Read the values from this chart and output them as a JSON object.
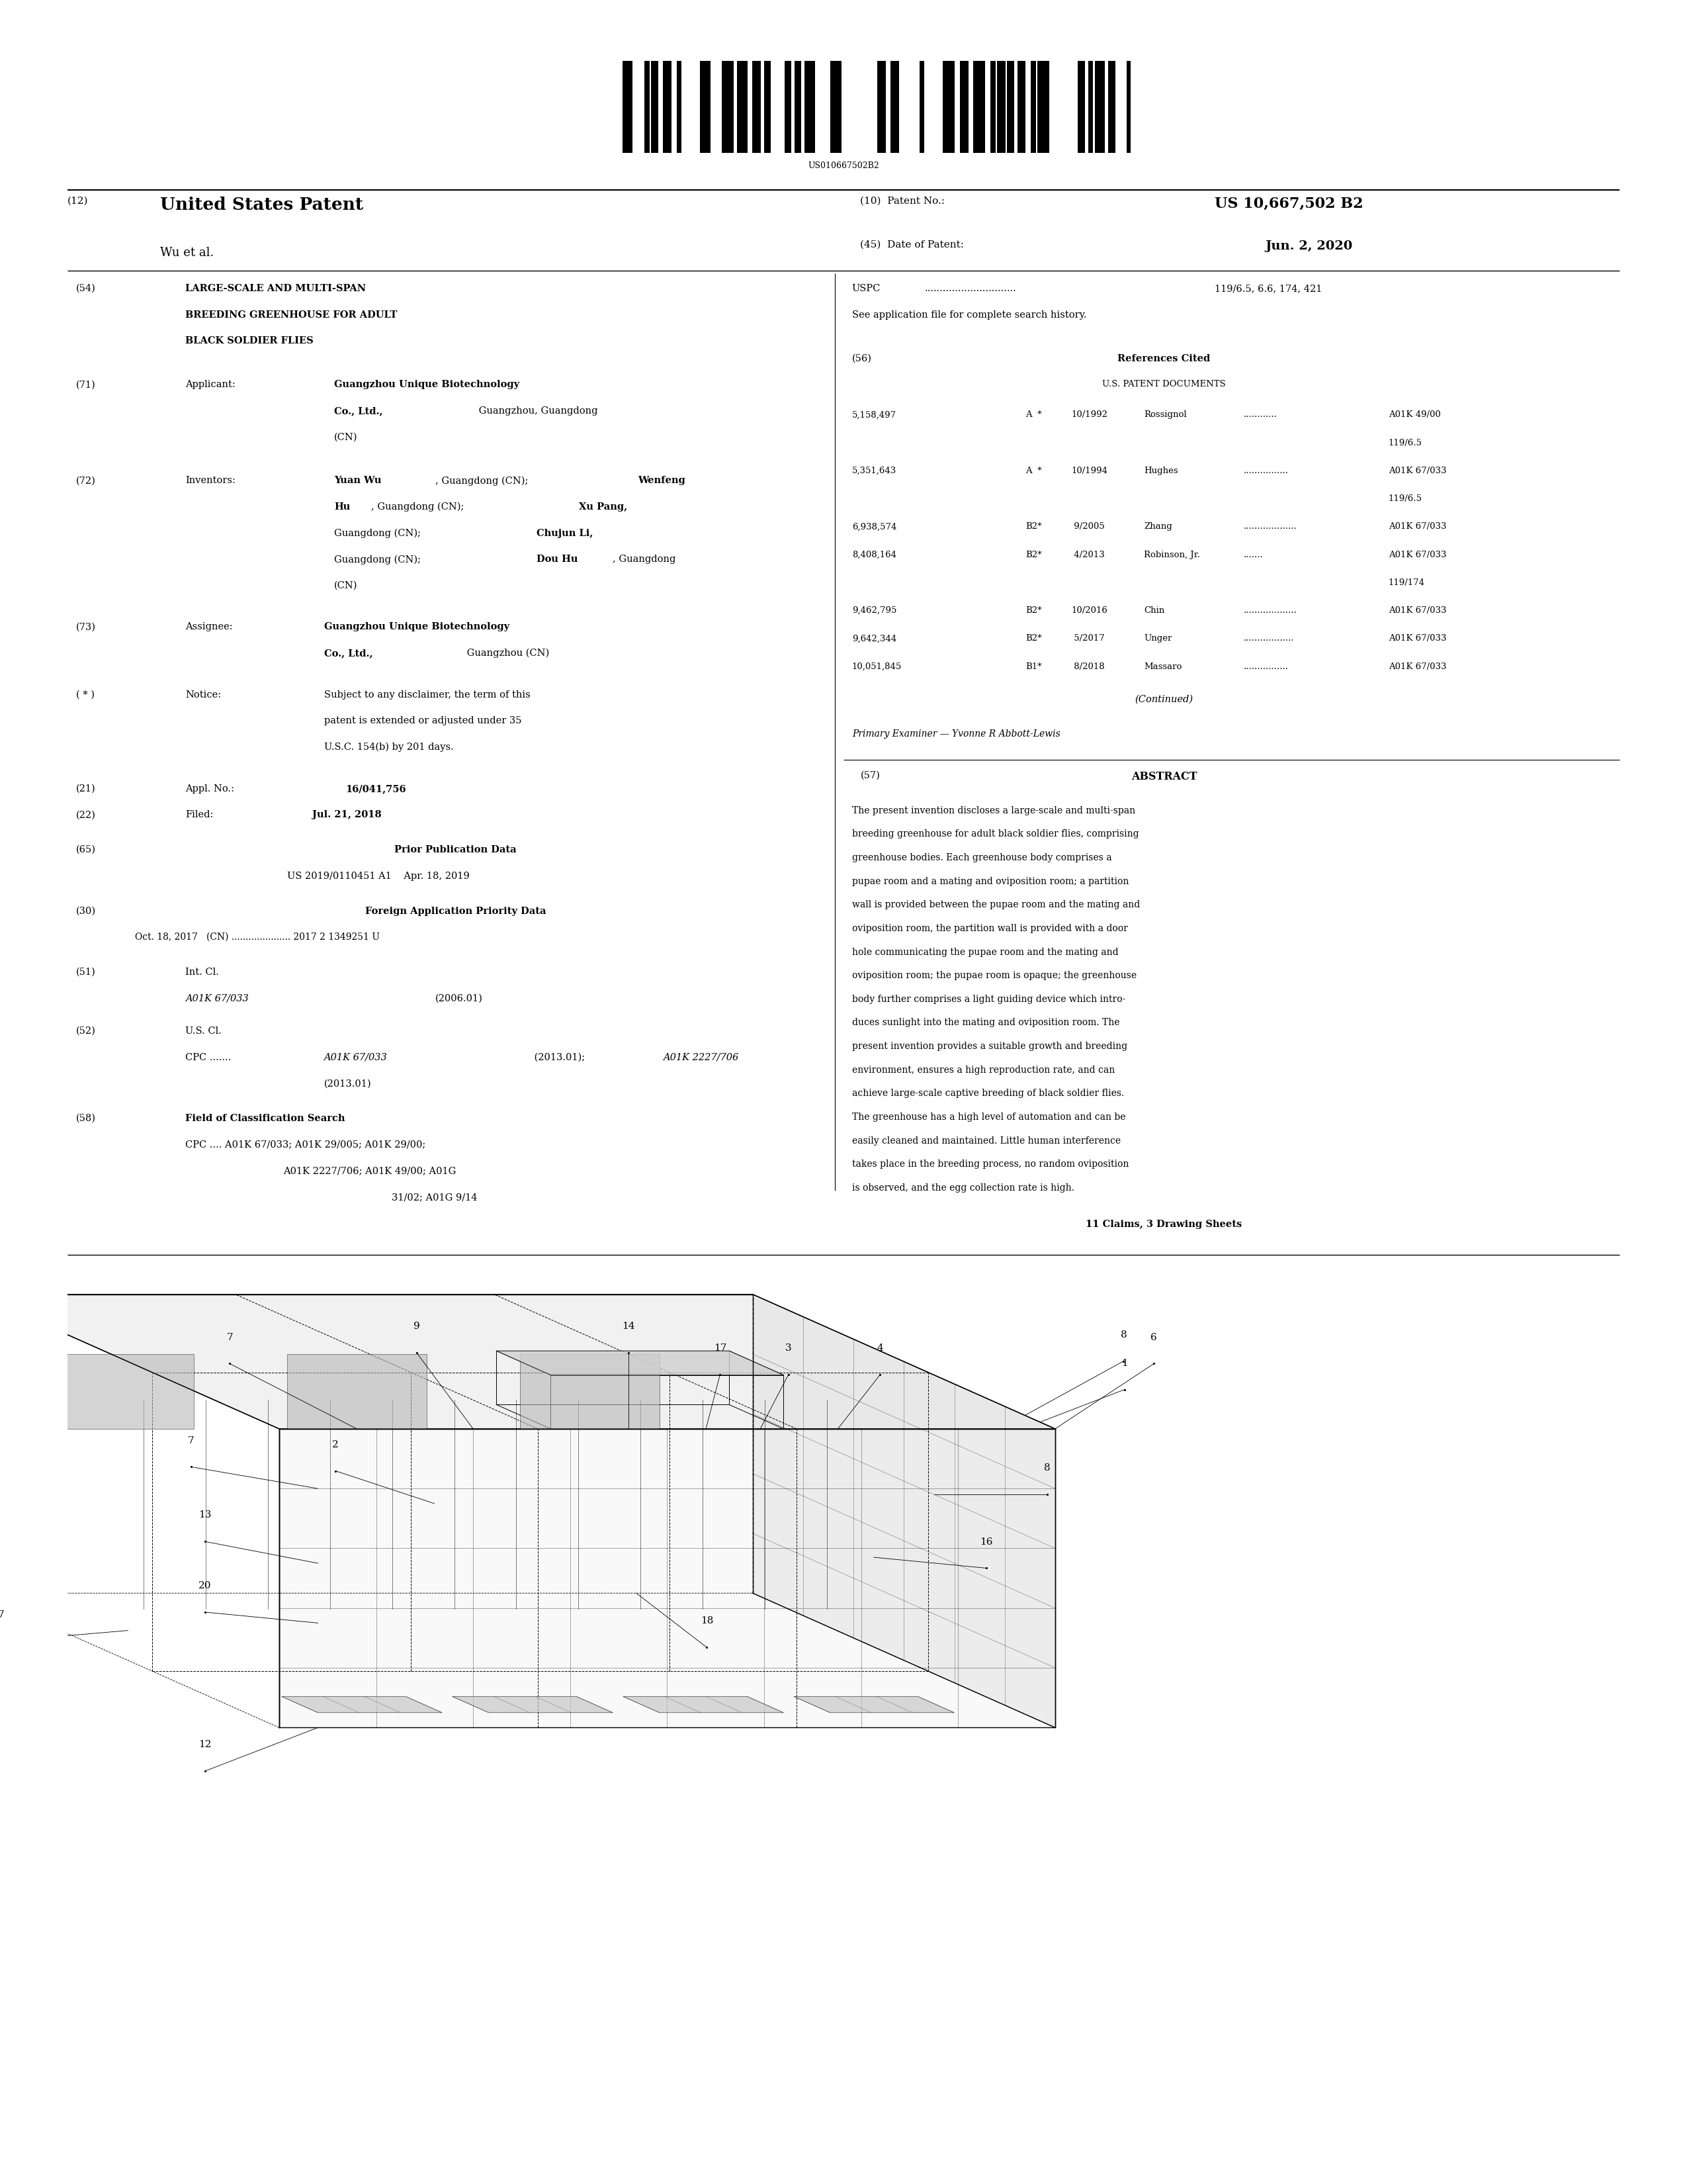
{
  "background_color": "#ffffff",
  "barcode_text": "US010667502B2",
  "patent_number": "US 10,667,502 B2",
  "patent_date": "Jun. 2, 2020",
  "inventors": "Wu et al.",
  "title_line1": "LARGE-SCALE AND MULTI-SPAN",
  "title_line2": "BREEDING GREENHOUSE FOR ADULT",
  "title_line3": "BLACK SOLDIER FLIES",
  "refs": [
    {
      "num": "5,158,497",
      "flag": "A  *",
      "date": "10/1992",
      "author": "Rossignol",
      "dots": "............",
      "class": "A01K 49/00",
      "subclass": "119/6.5"
    },
    {
      "num": "5,351,643",
      "flag": "A  *",
      "date": "10/1994",
      "author": "Hughes",
      "dots": "................",
      "class": "A01K 67/033",
      "subclass": "119/6.5"
    },
    {
      "num": "6,938,574",
      "flag": "B2*",
      "date": " 9/2005",
      "author": "Zhang",
      "dots": "...................",
      "class": "A01K 67/033",
      "subclass": ""
    },
    {
      "num": "8,408,164",
      "flag": "B2*",
      "date": " 4/2013",
      "author": "Robinson, Jr.",
      "dots": ".......",
      "class": "A01K 67/033",
      "subclass": "119/174"
    },
    {
      "num": "9,462,795",
      "flag": "B2*",
      "date": "10/2016",
      "author": "Chin",
      "dots": "...................",
      "class": "A01K 67/033",
      "subclass": ""
    },
    {
      "num": "9,642,344",
      "flag": "B2*",
      "date": " 5/2017",
      "author": "Unger",
      "dots": "..................",
      "class": "A01K 67/033",
      "subclass": ""
    },
    {
      "num": "10,051,845",
      "flag": "B1*",
      "date": " 8/2018",
      "author": "Massaro",
      "dots": "................",
      "class": "A01K 67/033",
      "subclass": ""
    }
  ],
  "primary_examiner": "Primary Examiner — Yvonne R Abbott-Lewis",
  "abstract_lines": [
    "The present invention discloses a large-scale and multi-span",
    "breeding greenhouse for adult black soldier flies, comprising",
    "greenhouse bodies. Each greenhouse body comprises a",
    "pupae room and a mating and oviposition room; a partition",
    "wall is provided between the pupae room and the mating and",
    "oviposition room, the partition wall is provided with a door",
    "hole communicating the pupae room and the mating and",
    "oviposition room; the pupae room is opaque; the greenhouse",
    "body further comprises a light guiding device which intro-",
    "duces sunlight into the mating and oviposition room. The",
    "present invention provides a suitable growth and breeding",
    "environment, ensures a high reproduction rate, and can",
    "achieve large-scale captive breeding of black soldier flies.",
    "The greenhouse has a high level of automation and can be",
    "easily cleaned and maintained. Little human interference",
    "takes place in the breeding process, no random oviposition",
    "is observed, and the egg collection rate is high."
  ],
  "claims_note": "11 Claims, 3 Drawing Sheets",
  "font_serif": "DejaVu Serif",
  "text_color": "#000000",
  "line_color": "#000000"
}
